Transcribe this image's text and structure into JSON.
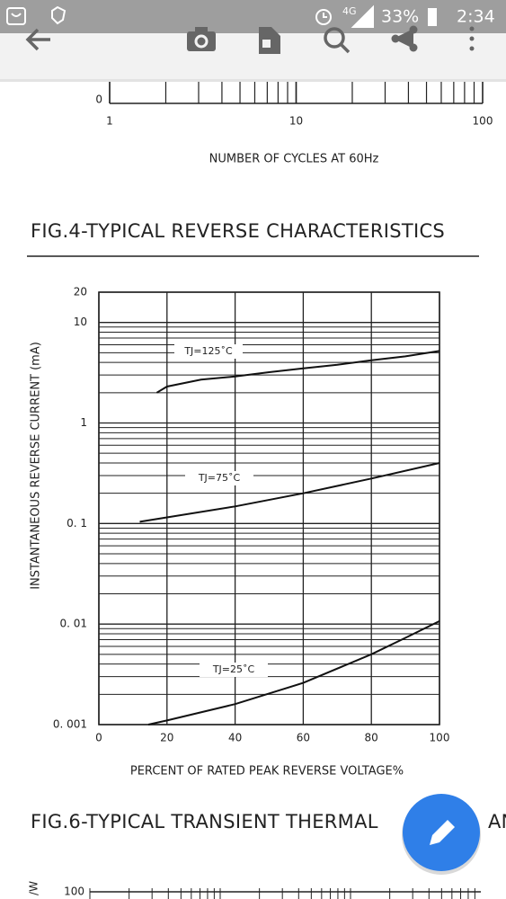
{
  "status_bar": {
    "network": "4G",
    "battery": "33%",
    "time": "2:34"
  },
  "top_chart": {
    "type": "line",
    "xlim": [
      1,
      100
    ],
    "xticks": [
      1,
      10,
      100
    ],
    "yticks": [
      0
    ],
    "xlabel": "NUMBER OF CYCLES AT 60Hz"
  },
  "chart_data": {
    "type": "line",
    "title": "FIG.4-TYPICAL REVERSE CHARACTERISTICS",
    "xlabel": "PERCENT OF RATED PEAK REVERSE VOLTAGE%",
    "ylabel": "INSTANTANEOUS REVERSE CURRENT (mA)",
    "xlim": [
      0,
      100
    ],
    "xticks": [
      0,
      20,
      40,
      60,
      80,
      100
    ],
    "ylim": [
      0.001,
      20
    ],
    "yticks": [
      20,
      10,
      1,
      {
        "value": 0.1,
        "label": "0. 1"
      },
      {
        "value": 0.01,
        "label": "0. 01"
      },
      {
        "value": 0.001,
        "label": "0. 001"
      }
    ],
    "log_y": true,
    "grid": true,
    "series": [
      {
        "name": "TJ=125˚C",
        "color": "#111111",
        "x": [
          17,
          20,
          30,
          40,
          50,
          60,
          70,
          80,
          90,
          100
        ],
        "values": [
          2.0,
          2.3,
          2.7,
          2.9,
          3.2,
          3.5,
          3.8,
          4.2,
          4.6,
          5.2
        ]
      },
      {
        "name": "TJ=75˚C",
        "color": "#111111",
        "x": [
          12,
          20,
          40,
          60,
          80,
          100
        ],
        "values": [
          0.104,
          0.115,
          0.148,
          0.2,
          0.28,
          0.4
        ]
      },
      {
        "name": "TJ=25˚C",
        "color": "#111111",
        "x": [
          14.5,
          20,
          40,
          60,
          80,
          90,
          100
        ],
        "values": [
          0.001,
          0.0011,
          0.0016,
          0.0026,
          0.005,
          0.0073,
          0.0107
        ]
      }
    ]
  },
  "next_figure": {
    "title": "FIG.6-TYPICAL TRANSIENT THERMAL",
    "title_tail": "AN",
    "ylabel": "/W",
    "yticks": [
      100
    ]
  }
}
